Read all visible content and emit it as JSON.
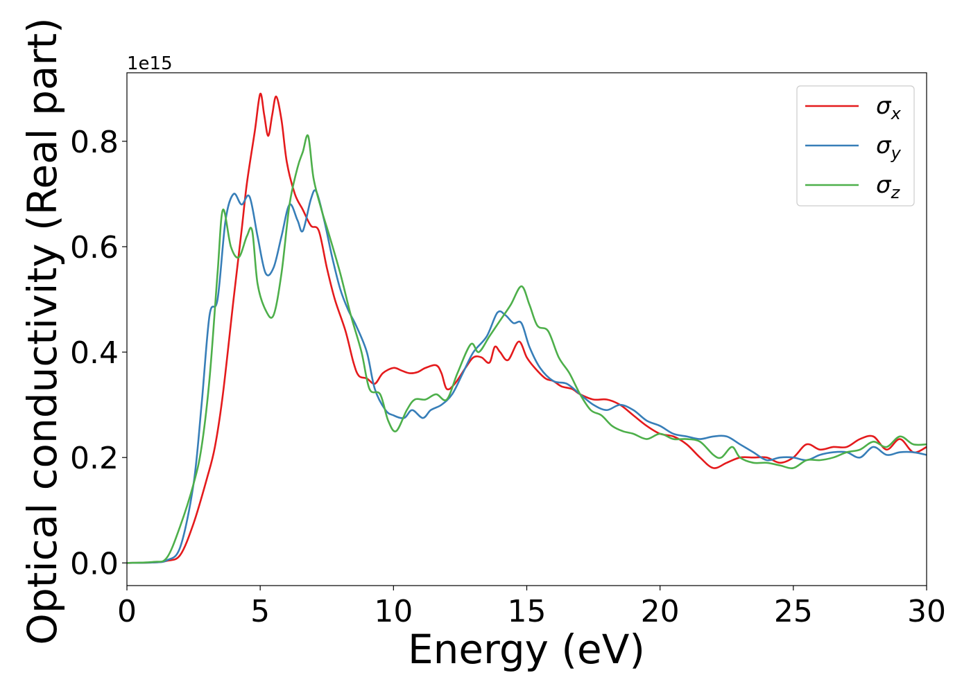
{
  "chart_data": {
    "type": "line",
    "xlabel": "Energy (eV)",
    "ylabel": "Optical conductivity (Real part)",
    "offset_text": "1e15",
    "xlim": [
      0,
      30
    ],
    "ylim": [
      -0.043,
      0.93
    ],
    "xticks": [
      0,
      5,
      10,
      15,
      20,
      25,
      30
    ],
    "xtick_labels": [
      "0",
      "5",
      "10",
      "15",
      "20",
      "25",
      "30"
    ],
    "yticks": [
      0.0,
      0.2,
      0.4,
      0.6,
      0.8
    ],
    "ytick_labels": [
      "0.0",
      "0.2",
      "0.4",
      "0.6",
      "0.8"
    ],
    "grid": false,
    "legend": {
      "placement": "top-right"
    },
    "series": [
      {
        "name": "σ",
        "subscript": "x",
        "color": "#e41a1c",
        "points": [
          [
            0,
            0
          ],
          [
            1,
            0.001
          ],
          [
            1.5,
            0.004
          ],
          [
            2,
            0.015
          ],
          [
            2.5,
            0.075
          ],
          [
            3,
            0.16
          ],
          [
            3.3,
            0.22
          ],
          [
            3.6,
            0.32
          ],
          [
            4,
            0.5
          ],
          [
            4.3,
            0.63
          ],
          [
            4.5,
            0.72
          ],
          [
            4.8,
            0.82
          ],
          [
            5,
            0.89
          ],
          [
            5.15,
            0.85
          ],
          [
            5.3,
            0.81
          ],
          [
            5.45,
            0.85
          ],
          [
            5.6,
            0.885
          ],
          [
            5.8,
            0.84
          ],
          [
            6,
            0.76
          ],
          [
            6.3,
            0.7
          ],
          [
            6.6,
            0.67
          ],
          [
            6.9,
            0.64
          ],
          [
            7.2,
            0.63
          ],
          [
            7.5,
            0.56
          ],
          [
            7.8,
            0.5
          ],
          [
            8.2,
            0.44
          ],
          [
            8.5,
            0.38
          ],
          [
            8.7,
            0.355
          ],
          [
            9,
            0.35
          ],
          [
            9.3,
            0.34
          ],
          [
            9.6,
            0.36
          ],
          [
            10,
            0.37
          ],
          [
            10.3,
            0.365
          ],
          [
            10.6,
            0.36
          ],
          [
            10.9,
            0.362
          ],
          [
            11.2,
            0.37
          ],
          [
            11.6,
            0.375
          ],
          [
            11.8,
            0.36
          ],
          [
            12,
            0.33
          ],
          [
            12.3,
            0.34
          ],
          [
            12.7,
            0.37
          ],
          [
            13,
            0.39
          ],
          [
            13.3,
            0.39
          ],
          [
            13.6,
            0.38
          ],
          [
            13.8,
            0.41
          ],
          [
            14,
            0.4
          ],
          [
            14.3,
            0.385
          ],
          [
            14.7,
            0.42
          ],
          [
            15,
            0.39
          ],
          [
            15.3,
            0.37
          ],
          [
            15.7,
            0.35
          ],
          [
            16,
            0.345
          ],
          [
            16.3,
            0.335
          ],
          [
            16.7,
            0.33
          ],
          [
            17,
            0.32
          ],
          [
            17.5,
            0.31
          ],
          [
            18,
            0.31
          ],
          [
            18.5,
            0.3
          ],
          [
            19,
            0.28
          ],
          [
            19.5,
            0.26
          ],
          [
            20,
            0.245
          ],
          [
            20.5,
            0.24
          ],
          [
            21,
            0.225
          ],
          [
            21.5,
            0.2
          ],
          [
            22,
            0.18
          ],
          [
            22.5,
            0.19
          ],
          [
            23,
            0.2
          ],
          [
            23.5,
            0.2
          ],
          [
            24,
            0.2
          ],
          [
            24.5,
            0.19
          ],
          [
            25,
            0.2
          ],
          [
            25.5,
            0.225
          ],
          [
            26,
            0.215
          ],
          [
            26.5,
            0.22
          ],
          [
            27,
            0.22
          ],
          [
            27.5,
            0.235
          ],
          [
            28,
            0.24
          ],
          [
            28.5,
            0.215
          ],
          [
            29,
            0.235
          ],
          [
            29.5,
            0.21
          ],
          [
            30,
            0.22
          ]
        ]
      },
      {
        "name": "σ",
        "subscript": "y",
        "color": "#377eb8",
        "points": [
          [
            0,
            0
          ],
          [
            1,
            0.001
          ],
          [
            1.5,
            0.005
          ],
          [
            2,
            0.03
          ],
          [
            2.5,
            0.15
          ],
          [
            2.8,
            0.3
          ],
          [
            3.1,
            0.47
          ],
          [
            3.4,
            0.5
          ],
          [
            3.7,
            0.65
          ],
          [
            4,
            0.7
          ],
          [
            4.3,
            0.68
          ],
          [
            4.6,
            0.695
          ],
          [
            4.9,
            0.62
          ],
          [
            5.2,
            0.55
          ],
          [
            5.5,
            0.56
          ],
          [
            5.8,
            0.62
          ],
          [
            6.1,
            0.68
          ],
          [
            6.4,
            0.65
          ],
          [
            6.6,
            0.63
          ],
          [
            6.9,
            0.69
          ],
          [
            7.1,
            0.705
          ],
          [
            7.4,
            0.65
          ],
          [
            7.7,
            0.58
          ],
          [
            8,
            0.52
          ],
          [
            8.3,
            0.48
          ],
          [
            8.6,
            0.45
          ],
          [
            9,
            0.4
          ],
          [
            9.3,
            0.33
          ],
          [
            9.7,
            0.29
          ],
          [
            10,
            0.28
          ],
          [
            10.4,
            0.275
          ],
          [
            10.7,
            0.29
          ],
          [
            11.1,
            0.275
          ],
          [
            11.4,
            0.29
          ],
          [
            11.8,
            0.3
          ],
          [
            12.2,
            0.32
          ],
          [
            12.6,
            0.36
          ],
          [
            13,
            0.4
          ],
          [
            13.5,
            0.43
          ],
          [
            13.9,
            0.475
          ],
          [
            14.2,
            0.47
          ],
          [
            14.5,
            0.455
          ],
          [
            14.8,
            0.455
          ],
          [
            15.1,
            0.41
          ],
          [
            15.5,
            0.37
          ],
          [
            16,
            0.345
          ],
          [
            16.5,
            0.34
          ],
          [
            17,
            0.32
          ],
          [
            17.5,
            0.3
          ],
          [
            18,
            0.29
          ],
          [
            18.5,
            0.3
          ],
          [
            19,
            0.29
          ],
          [
            19.5,
            0.27
          ],
          [
            20,
            0.26
          ],
          [
            20.5,
            0.245
          ],
          [
            21,
            0.24
          ],
          [
            21.5,
            0.235
          ],
          [
            22,
            0.24
          ],
          [
            22.5,
            0.24
          ],
          [
            23,
            0.225
          ],
          [
            23.5,
            0.21
          ],
          [
            24,
            0.195
          ],
          [
            24.5,
            0.2
          ],
          [
            25,
            0.2
          ],
          [
            25.5,
            0.195
          ],
          [
            26,
            0.205
          ],
          [
            26.5,
            0.21
          ],
          [
            27,
            0.21
          ],
          [
            27.5,
            0.2
          ],
          [
            28,
            0.22
          ],
          [
            28.5,
            0.205
          ],
          [
            29,
            0.21
          ],
          [
            29.5,
            0.21
          ],
          [
            30,
            0.205
          ]
        ]
      },
      {
        "name": "σ",
        "subscript": "z",
        "color": "#4daf4a",
        "points": [
          [
            0,
            0
          ],
          [
            1,
            0.002
          ],
          [
            1.5,
            0.01
          ],
          [
            2,
            0.07
          ],
          [
            2.5,
            0.15
          ],
          [
            2.8,
            0.22
          ],
          [
            3.1,
            0.35
          ],
          [
            3.4,
            0.55
          ],
          [
            3.6,
            0.67
          ],
          [
            3.9,
            0.6
          ],
          [
            4.2,
            0.58
          ],
          [
            4.5,
            0.62
          ],
          [
            4.7,
            0.63
          ],
          [
            4.9,
            0.53
          ],
          [
            5.2,
            0.48
          ],
          [
            5.5,
            0.47
          ],
          [
            5.8,
            0.55
          ],
          [
            6.1,
            0.68
          ],
          [
            6.4,
            0.75
          ],
          [
            6.6,
            0.78
          ],
          [
            6.8,
            0.81
          ],
          [
            7,
            0.73
          ],
          [
            7.3,
            0.67
          ],
          [
            7.6,
            0.62
          ],
          [
            8,
            0.55
          ],
          [
            8.4,
            0.47
          ],
          [
            8.8,
            0.4
          ],
          [
            9.1,
            0.33
          ],
          [
            9.5,
            0.32
          ],
          [
            9.8,
            0.27
          ],
          [
            10.1,
            0.25
          ],
          [
            10.5,
            0.29
          ],
          [
            10.8,
            0.31
          ],
          [
            11.2,
            0.31
          ],
          [
            11.6,
            0.32
          ],
          [
            12,
            0.31
          ],
          [
            12.4,
            0.36
          ],
          [
            12.9,
            0.415
          ],
          [
            13.2,
            0.4
          ],
          [
            13.6,
            0.43
          ],
          [
            14,
            0.46
          ],
          [
            14.4,
            0.49
          ],
          [
            14.8,
            0.525
          ],
          [
            15.1,
            0.49
          ],
          [
            15.4,
            0.45
          ],
          [
            15.8,
            0.44
          ],
          [
            16.2,
            0.39
          ],
          [
            16.6,
            0.36
          ],
          [
            17,
            0.32
          ],
          [
            17.4,
            0.29
          ],
          [
            17.8,
            0.28
          ],
          [
            18.2,
            0.26
          ],
          [
            18.6,
            0.25
          ],
          [
            19,
            0.245
          ],
          [
            19.5,
            0.235
          ],
          [
            20,
            0.245
          ],
          [
            20.5,
            0.235
          ],
          [
            21,
            0.235
          ],
          [
            21.5,
            0.23
          ],
          [
            22,
            0.205
          ],
          [
            22.3,
            0.2
          ],
          [
            22.7,
            0.22
          ],
          [
            23,
            0.2
          ],
          [
            23.5,
            0.19
          ],
          [
            24,
            0.19
          ],
          [
            24.5,
            0.185
          ],
          [
            25,
            0.18
          ],
          [
            25.5,
            0.195
          ],
          [
            26,
            0.195
          ],
          [
            26.5,
            0.2
          ],
          [
            27,
            0.21
          ],
          [
            27.5,
            0.215
          ],
          [
            28,
            0.23
          ],
          [
            28.5,
            0.22
          ],
          [
            29,
            0.24
          ],
          [
            29.5,
            0.225
          ],
          [
            30,
            0.225
          ]
        ]
      }
    ]
  }
}
